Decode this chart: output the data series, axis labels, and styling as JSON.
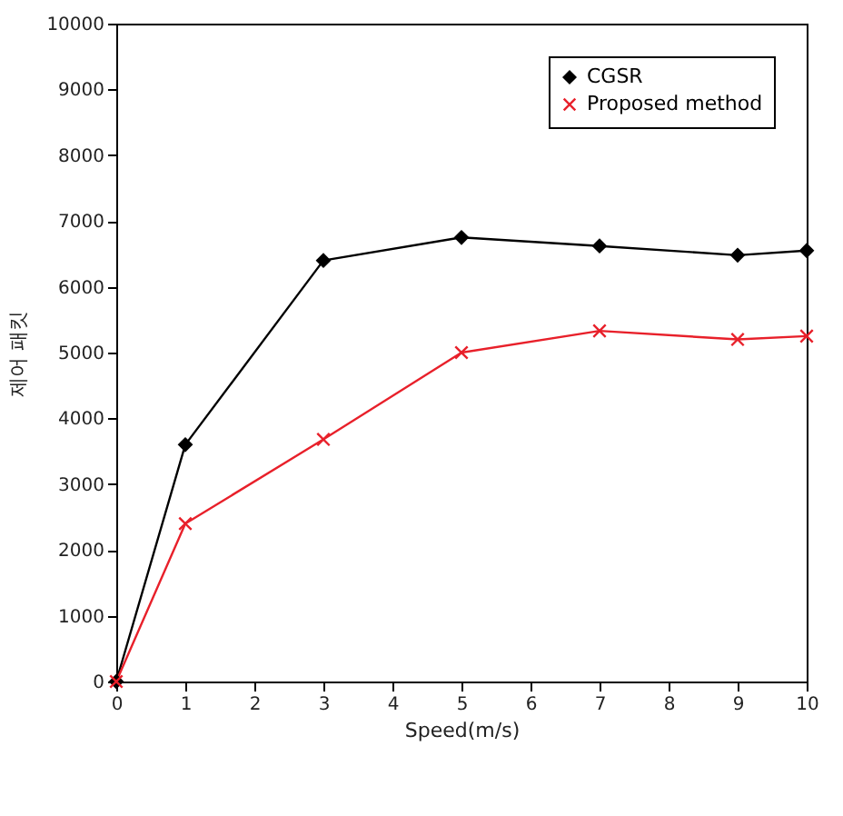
{
  "chart_data": {
    "type": "line",
    "xlabel": "Speed(m/s)",
    "ylabel": "제어 패킷",
    "x": [
      0,
      1,
      3,
      5,
      7,
      9,
      10
    ],
    "series": [
      {
        "name": "CGSR",
        "color": "#000000",
        "marker": "diamond",
        "values": [
          0,
          3600,
          6400,
          6750,
          6620,
          6480,
          6550
        ]
      },
      {
        "name": "Proposed method",
        "color": "#e8202a",
        "marker": "cross",
        "values": [
          0,
          2400,
          3680,
          5000,
          5330,
          5200,
          5250
        ]
      }
    ],
    "xlim": [
      0,
      10
    ],
    "xticks": [
      0,
      1,
      2,
      3,
      4,
      5,
      6,
      7,
      8,
      9,
      10
    ],
    "ylim": [
      0,
      10000
    ],
    "yticks": [
      0,
      1000,
      2000,
      3000,
      4000,
      5000,
      6000,
      7000,
      8000,
      9000,
      10000
    ],
    "grid": false,
    "legend": "top right",
    "line_style": "solid"
  }
}
